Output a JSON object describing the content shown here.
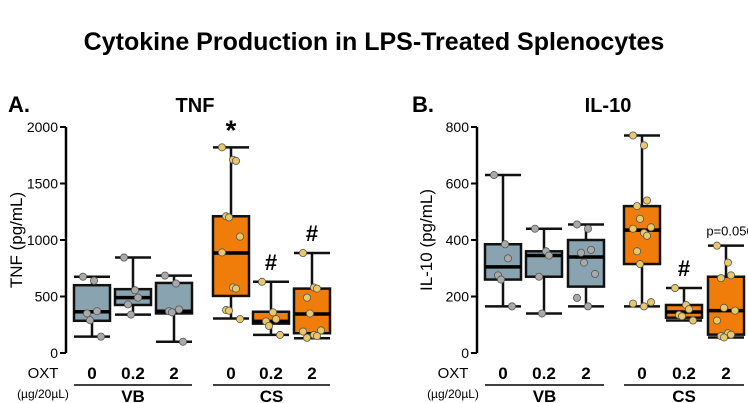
{
  "title": "Cytokine Production in LPS-Treated Splenocytes",
  "colors": {
    "vb": "#8aa3b0",
    "cs": "#f07d0a",
    "vb_point": "#a9a9a9",
    "cs_point": "#e8c86a"
  },
  "chart_data": [
    {
      "type": "box",
      "panel": "A.",
      "title": "TNF",
      "ylabel": "TNF (pg/mL)",
      "ylim": [
        0,
        2000
      ],
      "yticks": [
        "0",
        "500",
        "1000",
        "1500",
        "2000"
      ],
      "ytick_values": [
        0,
        500,
        1000,
        1500,
        2000
      ],
      "xlabel": "OXT",
      "xunit": "(µg/20µL)",
      "groups": [
        "VB",
        "CS"
      ],
      "categories": [
        "0",
        "0.2",
        "2",
        "0",
        "0.2",
        "2"
      ],
      "boxes": [
        {
          "group": "VB",
          "dose": "0",
          "min": 145,
          "q1": 285,
          "median": 365,
          "q3": 600,
          "max": 675,
          "points": [
            675,
            640,
            370,
            350,
            290,
            145
          ],
          "annotation": ""
        },
        {
          "group": "VB",
          "dose": "0.2",
          "min": 340,
          "q1": 425,
          "median": 490,
          "q3": 565,
          "max": 845,
          "points": [
            845,
            555,
            490,
            430,
            340
          ],
          "annotation": ""
        },
        {
          "group": "VB",
          "dose": "2",
          "min": 100,
          "q1": 350,
          "median": 370,
          "q3": 620,
          "max": 685,
          "points": [
            685,
            615,
            385,
            370,
            360,
            100
          ],
          "annotation": ""
        },
        {
          "group": "CS",
          "dose": "0",
          "min": 305,
          "q1": 505,
          "median": 885,
          "q3": 1210,
          "max": 1820,
          "points": [
            1820,
            1710,
            1700,
            1210,
            1200,
            1030,
            890,
            580,
            570,
            380,
            375,
            300
          ],
          "annotation": "*"
        },
        {
          "group": "CS",
          "dose": "0.2",
          "min": 160,
          "q1": 260,
          "median": 280,
          "q3": 365,
          "max": 630,
          "points": [
            630,
            360,
            300,
            280,
            240,
            160
          ],
          "annotation": "#"
        },
        {
          "group": "CS",
          "dose": "2",
          "min": 130,
          "q1": 175,
          "median": 345,
          "q3": 570,
          "max": 885,
          "points": [
            885,
            580,
            570,
            490,
            350,
            200,
            190,
            160,
            150,
            135
          ],
          "annotation": "#"
        }
      ]
    },
    {
      "type": "box",
      "panel": "B.",
      "title": "IL-10",
      "ylabel": "IL-10 (pg/mL)",
      "ylim": [
        0,
        800
      ],
      "yticks": [
        "0",
        "200",
        "400",
        "600",
        "800"
      ],
      "ytick_values": [
        0,
        200,
        400,
        600,
        800
      ],
      "xlabel": "OXT",
      "xunit": "(µg/20µL)",
      "groups": [
        "VB",
        "CS"
      ],
      "categories": [
        "0",
        "0.2",
        "2",
        "0",
        "0.2",
        "2"
      ],
      "boxes": [
        {
          "group": "VB",
          "dose": "0",
          "min": 165,
          "q1": 260,
          "median": 305,
          "q3": 385,
          "max": 630,
          "points": [
            630,
            385,
            335,
            275,
            260,
            165
          ],
          "annotation": ""
        },
        {
          "group": "VB",
          "dose": "0.2",
          "min": 140,
          "q1": 270,
          "median": 345,
          "q3": 360,
          "max": 440,
          "points": [
            440,
            360,
            345,
            270,
            140
          ],
          "annotation": ""
        },
        {
          "group": "VB",
          "dose": "2",
          "min": 165,
          "q1": 235,
          "median": 340,
          "q3": 400,
          "max": 455,
          "points": [
            455,
            440,
            365,
            355,
            320,
            280,
            195,
            165
          ],
          "annotation": ""
        },
        {
          "group": "CS",
          "dose": "0",
          "min": 165,
          "q1": 315,
          "median": 435,
          "q3": 520,
          "max": 770,
          "points": [
            770,
            735,
            540,
            520,
            475,
            445,
            440,
            425,
            415,
            360,
            315,
            180,
            175,
            165
          ],
          "annotation": ""
        },
        {
          "group": "CS",
          "dose": "0.2",
          "min": 115,
          "q1": 125,
          "median": 145,
          "q3": 170,
          "max": 230,
          "points": [
            230,
            170,
            155,
            135,
            130,
            115
          ],
          "annotation": "#"
        },
        {
          "group": "CS",
          "dose": "2",
          "min": 55,
          "q1": 65,
          "median": 150,
          "q3": 270,
          "max": 380,
          "points": [
            380,
            320,
            275,
            265,
            160,
            150,
            115,
            70,
            65,
            60,
            55
          ],
          "annotation": "p=0.056"
        }
      ]
    }
  ]
}
